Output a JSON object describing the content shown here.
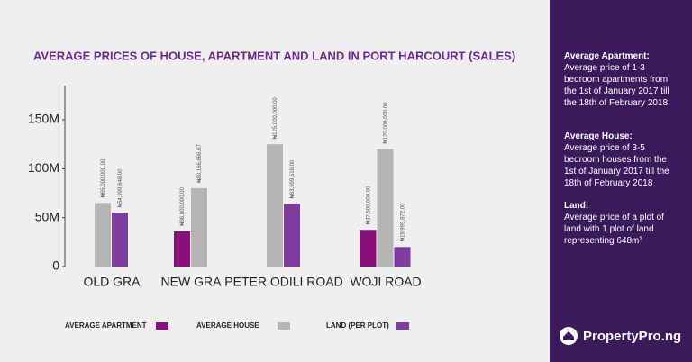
{
  "chart_data": {
    "type": "bar",
    "title": "AVERAGE PRICES OF HOUSE, APARTMENT AND LAND IN PORT HARCOURT (SALES)",
    "categories": [
      "OLD GRA",
      "NEW GRA",
      "PETER ODILI ROAD",
      "WOJI ROAD"
    ],
    "series": [
      {
        "name": "AVERAGE APARTMENT",
        "color": "#8a0f7a",
        "values": [
          null,
          36000000,
          null,
          37500000
        ],
        "value_labels": [
          null,
          "₦36,000,000.00",
          null,
          "₦37,500,000.00"
        ]
      },
      {
        "name": "AVERAGE HOUSE",
        "color": "#b5b5b5",
        "values": [
          65000000,
          80166666.67,
          125000000,
          120000000
        ],
        "value_labels": [
          "₦65,000,000.00",
          "₦80,166,666.67",
          "₦125,000,000.00",
          "₦120,000,000.00"
        ]
      },
      {
        "name": "LAND (PER PLOT)",
        "color": "#7d3c9e",
        "values": [
          54999648,
          null,
          63999616,
          19999872
        ],
        "value_labels": [
          "₦54,999,648.00",
          null,
          "₦63,999,616.00",
          "₦19,999,872.00"
        ]
      }
    ],
    "ylim": [
      0,
      185000000
    ],
    "yticks": [
      0,
      {
        "value": 50000000,
        "label": "50M"
      },
      {
        "value": 100000000,
        "label": "100M"
      },
      {
        "value": 150000000,
        "label": "150M"
      }
    ],
    "grid": false
  },
  "panel": {
    "notes": [
      {
        "heading": "Average Apartment:",
        "text": "Average price of 1-3 bedroom apartments from the 1st of January 2017 till the 18th of February 2018"
      },
      {
        "heading": "Average House:",
        "text": "Average price of 3-5 bedroom houses from the 1st of January 2017 till the 18th of February 2018"
      },
      {
        "heading": "Land:",
        "text": "Average price of a plot of land with 1 plot of land representing 648m²"
      }
    ],
    "logo": "PropertyPro.ng"
  }
}
